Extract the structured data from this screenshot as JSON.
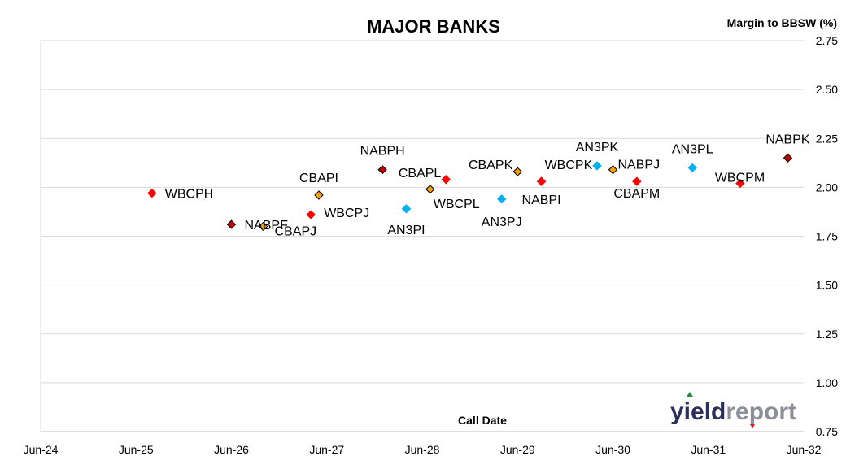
{
  "chart_data": {
    "type": "scatter",
    "title": "MAJOR BANKS",
    "xlabel": "Call Date",
    "ylabel": "Margin to BBSW (%)",
    "xlim": [
      "2024-06",
      "2032-06"
    ],
    "ylim": [
      0.75,
      2.75
    ],
    "y_axis_position": "right",
    "grid": "horizontal",
    "x_ticks": [
      "Jun-24",
      "Jun-25",
      "Jun-26",
      "Jun-27",
      "Jun-28",
      "Jun-29",
      "Jun-30",
      "Jun-31",
      "Jun-32"
    ],
    "y_ticks": [
      "0.75",
      "1.00",
      "1.25",
      "1.50",
      "1.75",
      "2.00",
      "2.25",
      "2.50",
      "2.75"
    ],
    "points": [
      {
        "label": "WBCPH",
        "x": "2025-08",
        "y": 1.97,
        "color": "#ff0000"
      },
      {
        "label": "NABPF",
        "x": "2026-06",
        "y": 1.81,
        "color": "#c00000"
      },
      {
        "label": "CBAPJ",
        "x": "2026-10",
        "y": 1.8,
        "color": "#f5a000"
      },
      {
        "label": "WBCPJ",
        "x": "2027-04",
        "y": 1.86,
        "color": "#ff0000"
      },
      {
        "label": "CBAPI",
        "x": "2027-05",
        "y": 1.96,
        "color": "#f5a000"
      },
      {
        "label": "NABPH",
        "x": "2028-01",
        "y": 2.09,
        "color": "#c00000"
      },
      {
        "label": "AN3PI",
        "x": "2028-04",
        "y": 1.89,
        "color": "#00b0f0"
      },
      {
        "label": "WBCPL",
        "x": "2028-07",
        "y": 1.99,
        "color": "#f5a000"
      },
      {
        "label": "CBAPL",
        "x": "2028-09",
        "y": 2.04,
        "color": "#ff0000"
      },
      {
        "label": "AN3PJ",
        "x": "2029-04",
        "y": 1.94,
        "color": "#00b0f0"
      },
      {
        "label": "CBAPK",
        "x": "2029-06",
        "y": 2.08,
        "color": "#f5a000"
      },
      {
        "label": "NABPI",
        "x": "2029-09",
        "y": 2.03,
        "color": "#c00000"
      },
      {
        "label": "WBCPK",
        "x": "2029-09",
        "y": 2.03,
        "color": "#ff0000"
      },
      {
        "label": "AN3PK",
        "x": "2030-04",
        "y": 2.11,
        "color": "#00b0f0"
      },
      {
        "label": "NABPJ",
        "x": "2030-06",
        "y": 2.09,
        "color": "#f5a000"
      },
      {
        "label": "CBAPM",
        "x": "2030-09",
        "y": 2.03,
        "color": "#ff0000"
      },
      {
        "label": "AN3PL",
        "x": "2031-04",
        "y": 2.1,
        "color": "#00b0f0"
      },
      {
        "label": "WBCPM",
        "x": "2031-10",
        "y": 2.02,
        "color": "#ff0000"
      },
      {
        "label": "NABPK",
        "x": "2032-04",
        "y": 2.15,
        "color": "#c00000"
      }
    ]
  },
  "logo": {
    "part1": "yield",
    "part2": "report"
  }
}
